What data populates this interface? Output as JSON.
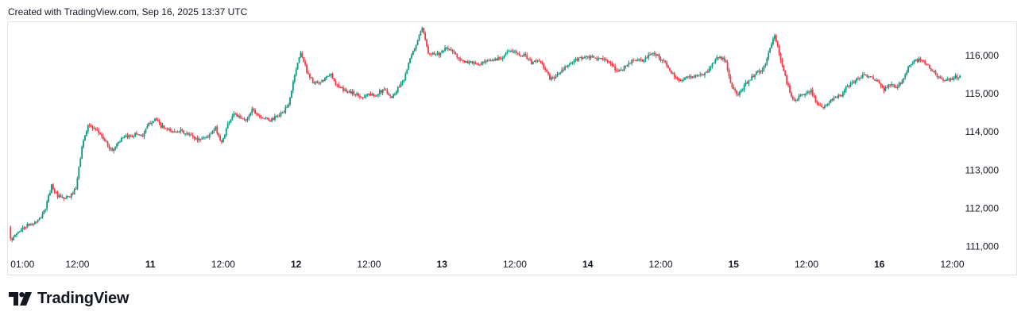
{
  "header": {
    "created_text": "Created with TradingView.com, Sep 16, 2025 13:37 UTC"
  },
  "brand": {
    "name": "TradingView"
  },
  "colors": {
    "up": "#089981",
    "down": "#f23645",
    "border": "#e0e3eb",
    "text": "#131722"
  },
  "chart_data": {
    "type": "candlestick",
    "title": "",
    "xlabel": "",
    "ylabel": "",
    "ylim": [
      110800,
      117000
    ],
    "y_ticks": [
      111000,
      112000,
      113000,
      114000,
      115000,
      116000
    ],
    "y_tick_labels": [
      "111,000",
      "112,000",
      "113,000",
      "114,000",
      "115,000",
      "116,000"
    ],
    "y_axis_position": "right",
    "grid": false,
    "x_ticks": [
      {
        "label": "01:00",
        "t": 0,
        "day": false
      },
      {
        "label": "12:00",
        "t": 11,
        "day": false
      },
      {
        "label": "11",
        "t": 23,
        "day": true
      },
      {
        "label": "12:00",
        "t": 35,
        "day": false
      },
      {
        "label": "12",
        "t": 47,
        "day": true
      },
      {
        "label": "12:00",
        "t": 59,
        "day": false
      },
      {
        "label": "13",
        "t": 71,
        "day": true
      },
      {
        "label": "12:00",
        "t": 83,
        "day": false
      },
      {
        "label": "14",
        "t": 95,
        "day": true
      },
      {
        "label": "12:00",
        "t": 107,
        "day": false
      },
      {
        "label": "15",
        "t": 119,
        "day": true
      },
      {
        "label": "12:00",
        "t": 131,
        "day": false
      },
      {
        "label": "16",
        "t": 143,
        "day": true
      },
      {
        "label": "12:00",
        "t": 155,
        "day": false
      }
    ],
    "time_range_hours": [
      -0.3,
      156.5
    ],
    "anchors": [
      [
        0,
        111500
      ],
      [
        0.4,
        111100
      ],
      [
        1,
        111300
      ],
      [
        2,
        111450
      ],
      [
        3,
        111550
      ],
      [
        4,
        111600
      ],
      [
        5,
        111700
      ],
      [
        6,
        112000
      ],
      [
        7,
        112600
      ],
      [
        8,
        112300
      ],
      [
        9,
        112250
      ],
      [
        10,
        112300
      ],
      [
        11,
        112500
      ],
      [
        12,
        113600
      ],
      [
        13,
        114200
      ],
      [
        14,
        114050
      ],
      [
        15,
        113950
      ],
      [
        16,
        113700
      ],
      [
        17,
        113500
      ],
      [
        18,
        113750
      ],
      [
        19,
        113850
      ],
      [
        20,
        113900
      ],
      [
        21,
        113950
      ],
      [
        22,
        113900
      ],
      [
        23,
        114200
      ],
      [
        24,
        114350
      ],
      [
        25,
        114150
      ],
      [
        26,
        114050
      ],
      [
        27,
        114000
      ],
      [
        28,
        114050
      ],
      [
        29,
        113950
      ],
      [
        30,
        113900
      ],
      [
        31,
        113800
      ],
      [
        32,
        113850
      ],
      [
        33,
        113900
      ],
      [
        34,
        114100
      ],
      [
        35,
        113700
      ],
      [
        36,
        114200
      ],
      [
        37,
        114500
      ],
      [
        38,
        114350
      ],
      [
        39,
        114300
      ],
      [
        40,
        114600
      ],
      [
        41,
        114450
      ],
      [
        42,
        114350
      ],
      [
        43,
        114300
      ],
      [
        44,
        114400
      ],
      [
        45,
        114500
      ],
      [
        46,
        114700
      ],
      [
        47,
        115500
      ],
      [
        48,
        116100
      ],
      [
        49,
        115600
      ],
      [
        50,
        115300
      ],
      [
        51,
        115250
      ],
      [
        52,
        115400
      ],
      [
        53,
        115500
      ],
      [
        54,
        115200
      ],
      [
        55,
        115100
      ],
      [
        56,
        115050
      ],
      [
        57,
        115000
      ],
      [
        58,
        114900
      ],
      [
        59,
        115000
      ],
      [
        60,
        114950
      ],
      [
        61,
        115050
      ],
      [
        62,
        115100
      ],
      [
        63,
        114900
      ],
      [
        64,
        115150
      ],
      [
        65,
        115400
      ],
      [
        66,
        115900
      ],
      [
        67,
        116300
      ],
      [
        68,
        116700
      ],
      [
        69,
        116100
      ],
      [
        70,
        116050
      ],
      [
        71,
        116050
      ],
      [
        72,
        116200
      ],
      [
        73,
        116100
      ],
      [
        74,
        115950
      ],
      [
        75,
        115800
      ],
      [
        76,
        115850
      ],
      [
        77,
        115750
      ],
      [
        78,
        115800
      ],
      [
        79,
        115850
      ],
      [
        80,
        115900
      ],
      [
        81,
        115950
      ],
      [
        82,
        116100
      ],
      [
        83,
        116100
      ],
      [
        84,
        116050
      ],
      [
        85,
        116000
      ],
      [
        86,
        115800
      ],
      [
        87,
        115900
      ],
      [
        88,
        115700
      ],
      [
        89,
        115400
      ],
      [
        90,
        115450
      ],
      [
        91,
        115600
      ],
      [
        92,
        115750
      ],
      [
        93,
        115850
      ],
      [
        94,
        115950
      ],
      [
        95,
        115950
      ],
      [
        96,
        115950
      ],
      [
        97,
        115900
      ],
      [
        98,
        115950
      ],
      [
        99,
        115750
      ],
      [
        100,
        115600
      ],
      [
        101,
        115650
      ],
      [
        102,
        115800
      ],
      [
        103,
        115900
      ],
      [
        104,
        115850
      ],
      [
        105,
        115950
      ],
      [
        106,
        116100
      ],
      [
        107,
        115950
      ],
      [
        108,
        115800
      ],
      [
        109,
        115550
      ],
      [
        110,
        115350
      ],
      [
        111,
        115400
      ],
      [
        112,
        115450
      ],
      [
        113,
        115450
      ],
      [
        114,
        115500
      ],
      [
        115,
        115600
      ],
      [
        116,
        115850
      ],
      [
        117,
        116000
      ],
      [
        118,
        115800
      ],
      [
        119,
        115150
      ],
      [
        120,
        114950
      ],
      [
        121,
        115200
      ],
      [
        122,
        115400
      ],
      [
        123,
        115550
      ],
      [
        124,
        115600
      ],
      [
        125,
        116050
      ],
      [
        126,
        116550
      ],
      [
        127,
        115900
      ],
      [
        128,
        115300
      ],
      [
        129,
        114850
      ],
      [
        130,
        114900
      ],
      [
        131,
        115000
      ],
      [
        132,
        115100
      ],
      [
        133,
        114700
      ],
      [
        134,
        114600
      ],
      [
        135,
        114800
      ],
      [
        136,
        114900
      ],
      [
        137,
        114950
      ],
      [
        138,
        115200
      ],
      [
        139,
        115300
      ],
      [
        140,
        115450
      ],
      [
        141,
        115500
      ],
      [
        142,
        115400
      ],
      [
        143,
        115300
      ],
      [
        144,
        115100
      ],
      [
        145,
        115250
      ],
      [
        146,
        115150
      ],
      [
        147,
        115350
      ],
      [
        148,
        115700
      ],
      [
        149,
        115850
      ],
      [
        150,
        115900
      ],
      [
        151,
        115750
      ],
      [
        152,
        115600
      ],
      [
        153,
        115450
      ],
      [
        154,
        115300
      ],
      [
        155,
        115400
      ],
      [
        156,
        115450
      ]
    ]
  }
}
